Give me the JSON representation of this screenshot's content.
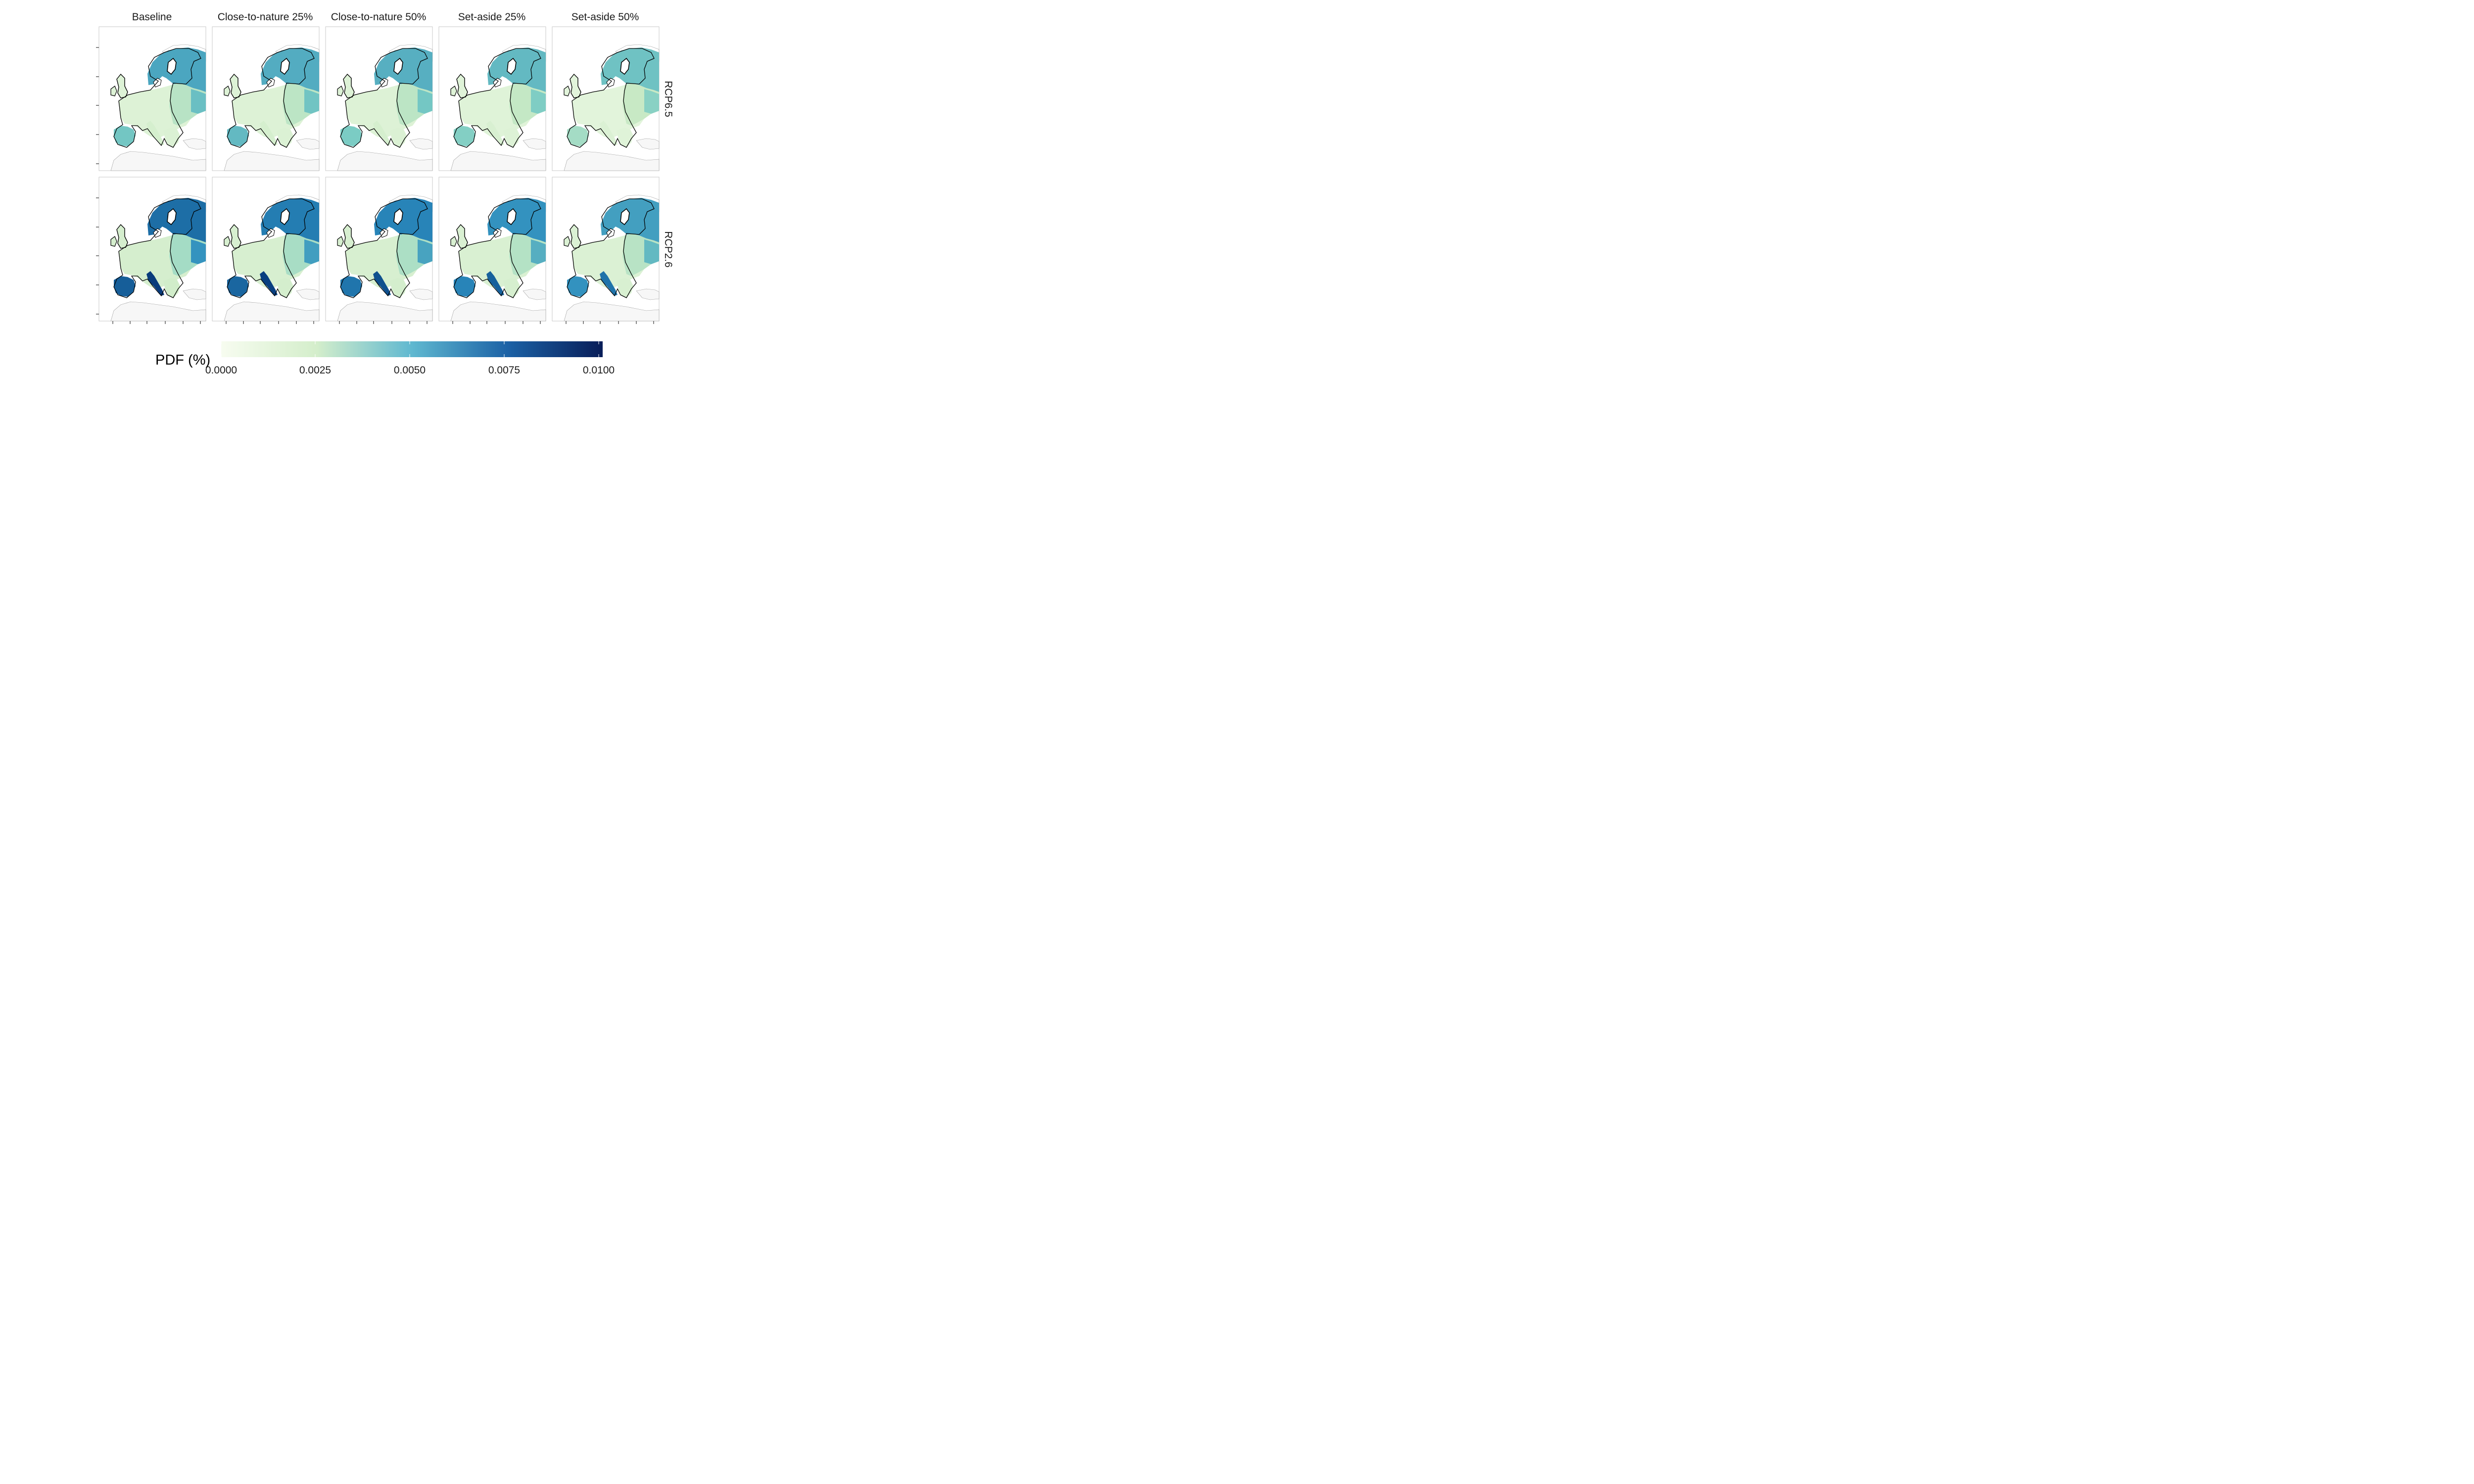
{
  "figure": {
    "columns": [
      "Baseline",
      "Close-to-nature 25%",
      "Close-to-nature 50%",
      "Set-aside 25%",
      "Set-aside 50%"
    ],
    "rows": [
      "RCP6.5",
      "RCP2.6"
    ]
  },
  "legend": {
    "title": "PDF (%)",
    "ticks": [
      "0.0000",
      "0.0025",
      "0.0050",
      "0.0075",
      "0.0100"
    ],
    "range": [
      0,
      0.01
    ],
    "colors": [
      "#f7fcf0",
      "#ccebc5",
      "#7bccc4",
      "#2b8cbe",
      "#084081",
      "#081d58"
    ]
  },
  "colors": {
    "panel_border": "#c9c9c9",
    "panel_bg": "#ffffff",
    "neighbour_fill": "#f7f7f7",
    "neighbour_stroke": "#9a9a9a",
    "eu_border": "#000000"
  },
  "chart_data": {
    "type": "heatmap",
    "description_values": {
      "RCP6.5": {
        "Baseline": {
          "north": 0.0052,
          "south_iberia": 0.0042,
          "central": 0.0012,
          "east": 0.0025
        },
        "Close-to-nature 25%": {
          "north": 0.005,
          "south_iberia": 0.0046,
          "central": 0.0012,
          "east": 0.0024
        },
        "Close-to-nature 50%": {
          "north": 0.0049,
          "south_iberia": 0.004,
          "central": 0.0012,
          "east": 0.0024
        },
        "Set-aside 25%": {
          "north": 0.0046,
          "south_iberia": 0.0038,
          "central": 0.0011,
          "east": 0.0022
        },
        "Set-aside 50%": {
          "north": 0.0043,
          "south_iberia": 0.003,
          "central": 0.001,
          "east": 0.0021
        }
      },
      "RCP2.6": {
        "Baseline": {
          "north": 0.0068,
          "south_iberia": 0.0072,
          "central": 0.0016,
          "east": 0.003
        },
        "Close-to-nature 25%": {
          "north": 0.0064,
          "south_iberia": 0.007,
          "central": 0.0015,
          "east": 0.0029
        },
        "Close-to-nature 50%": {
          "north": 0.0062,
          "south_iberia": 0.0066,
          "central": 0.0015,
          "east": 0.0028
        },
        "Set-aside 25%": {
          "north": 0.0058,
          "south_iberia": 0.0062,
          "central": 0.0014,
          "east": 0.0026
        },
        "Set-aside 50%": {
          "north": 0.0054,
          "south_iberia": 0.0058,
          "central": 0.0013,
          "east": 0.0025
        }
      }
    }
  }
}
